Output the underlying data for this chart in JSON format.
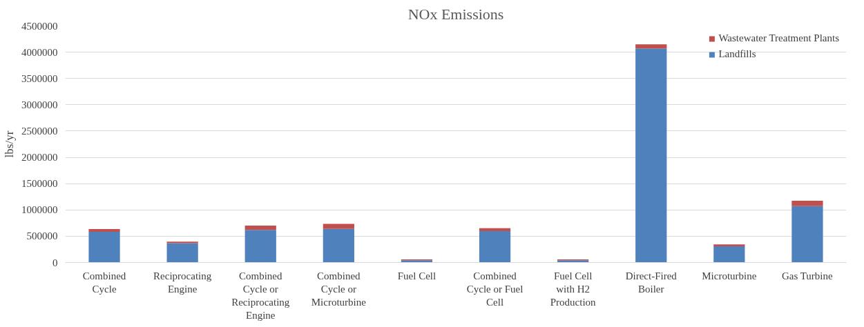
{
  "chart_data": {
    "type": "bar",
    "title": "NOx Emissions",
    "ylabel": "lbs/yr",
    "stacked": true,
    "categories": [
      "Combined Cycle",
      "Reciprocating Engine",
      "Combined Cycle or Reciprocating Engine",
      "Combined Cycle or Microturbine",
      "Fuel Cell",
      "Combined Cycle or Fuel Cell",
      "Fuel Cell with H2 Production",
      "Direct-Fired Boiler",
      "Microturbine",
      "Gas Turbine"
    ],
    "series": [
      {
        "name": "Landfills",
        "color": "#4f81bd",
        "values": [
          584000,
          366000,
          620000,
          641000,
          42000,
          596000,
          42000,
          4070000,
          308000,
          1071000
        ]
      },
      {
        "name": "Wastewater Treatment Plants",
        "color": "#c0504d",
        "values": [
          52000,
          31000,
          83000,
          93000,
          16000,
          58000,
          16000,
          80000,
          38000,
          102000
        ]
      }
    ],
    "ylim": [
      0,
      4500000
    ],
    "yticks": [
      0,
      500000,
      1000000,
      1500000,
      2000000,
      2500000,
      3000000,
      3500000,
      4000000,
      4500000
    ],
    "grid": "y",
    "legend": "top right"
  }
}
